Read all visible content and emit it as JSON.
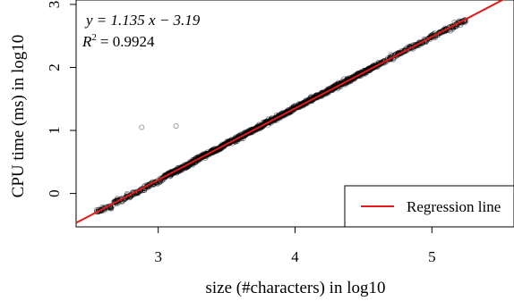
{
  "chart_data": {
    "type": "scatter",
    "title": "",
    "xlabel": "size (#characters) in log10",
    "ylabel": "CPU time (ms) in log10",
    "xlim": [
      2.4,
      5.6
    ],
    "ylim": [
      -0.53,
      3.07
    ],
    "xticks": [
      3,
      4,
      5
    ],
    "yticks": [
      0,
      1,
      2,
      3
    ],
    "grid": false,
    "legend": {
      "position": "bottom-right",
      "entries": [
        "Regression line"
      ]
    },
    "annotation": {
      "equation": "y = 1.135 x − 3.19",
      "r2_label": "R",
      "r2_exponent": "2",
      "r2_value": "= 0.9924"
    },
    "regression": {
      "slope": 1.135,
      "intercept": -3.19,
      "color": "#e31a1c"
    },
    "point_color": "#000000",
    "sample_points": [
      [
        2.55,
        -0.29
      ],
      [
        2.6,
        -0.24
      ],
      [
        2.65,
        -0.22
      ],
      [
        2.7,
        -0.12
      ],
      [
        2.75,
        -0.08
      ],
      [
        2.8,
        -0.03
      ],
      [
        2.85,
        0.02
      ],
      [
        2.9,
        0.08
      ],
      [
        2.95,
        0.15
      ],
      [
        3.0,
        0.19
      ],
      [
        3.05,
        0.27
      ],
      [
        3.1,
        0.33
      ],
      [
        3.15,
        0.38
      ],
      [
        3.2,
        0.43
      ],
      [
        3.25,
        0.49
      ],
      [
        3.3,
        0.56
      ],
      [
        3.35,
        0.61
      ],
      [
        3.4,
        0.67
      ],
      [
        3.45,
        0.72
      ],
      [
        3.5,
        0.79
      ],
      [
        3.55,
        0.84
      ],
      [
        3.6,
        0.9
      ],
      [
        3.65,
        0.96
      ],
      [
        3.7,
        1.01
      ],
      [
        3.75,
        1.07
      ],
      [
        3.8,
        1.13
      ],
      [
        3.85,
        1.18
      ],
      [
        3.9,
        1.24
      ],
      [
        3.95,
        1.3
      ],
      [
        4.0,
        1.36
      ],
      [
        4.05,
        1.41
      ],
      [
        4.1,
        1.47
      ],
      [
        4.15,
        1.53
      ],
      [
        4.2,
        1.58
      ],
      [
        4.25,
        1.64
      ],
      [
        4.3,
        1.7
      ],
      [
        4.35,
        1.75
      ],
      [
        4.4,
        1.81
      ],
      [
        4.45,
        1.87
      ],
      [
        4.5,
        1.92
      ],
      [
        4.55,
        1.98
      ],
      [
        4.6,
        2.04
      ],
      [
        4.65,
        2.09
      ],
      [
        4.7,
        2.15
      ],
      [
        4.75,
        2.21
      ],
      [
        4.8,
        2.26
      ],
      [
        4.85,
        2.32
      ],
      [
        4.9,
        2.37
      ],
      [
        4.95,
        2.43
      ],
      [
        5.0,
        2.49
      ],
      [
        5.05,
        2.54
      ],
      [
        5.1,
        2.6
      ],
      [
        5.15,
        2.64
      ],
      [
        5.2,
        2.71
      ],
      [
        5.25,
        2.74
      ],
      [
        2.88,
        1.05
      ],
      [
        3.13,
        1.07
      ]
    ]
  }
}
